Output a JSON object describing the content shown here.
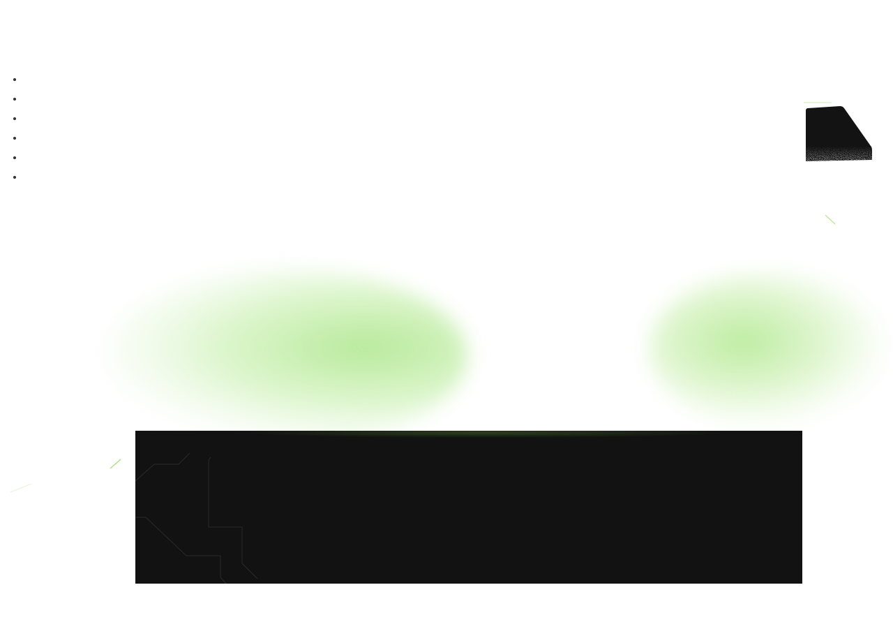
{
  "nav": {
    "items": [
      {
        "label": ""
      },
      {
        "label": ""
      },
      {
        "label": ""
      },
      {
        "label": ""
      },
      {
        "label": ""
      },
      {
        "label": ""
      }
    ]
  },
  "colors": {
    "background": "#ffffff",
    "panel": "#121212",
    "accent_green": "#b4e896",
    "bullet": "#333333"
  },
  "icons": {
    "corner_card": "noise-card-icon",
    "accent_stroke": "accent-line-icon"
  }
}
